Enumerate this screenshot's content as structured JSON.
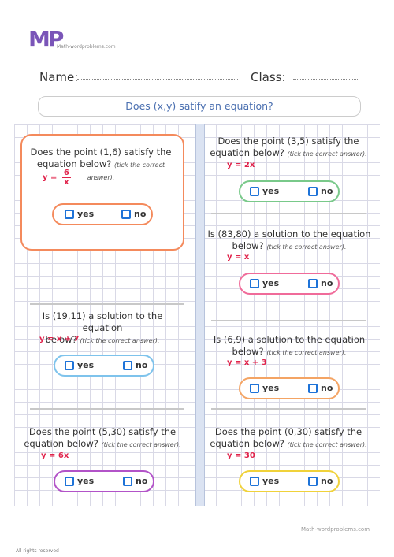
{
  "logo": {
    "letters": "MP",
    "tagline": "Math-wordproblems.com"
  },
  "header": {
    "name_label": "Name:",
    "class_label": "Class:"
  },
  "title": "Does (x,y) satify an equation?",
  "hint": "(tick the correct answer).",
  "options": {
    "yes": "yes",
    "no": "no"
  },
  "questions": [
    {
      "line1": "Does the point (1,6) satisfy the",
      "line2": "equation below?",
      "eq_prefix": "y =",
      "eq_num": "6",
      "eq_den": "x",
      "pill_color": "#f48a5c"
    },
    {
      "line1": "Does the point (3,5) satisfy the",
      "line2": "equation below?",
      "equation": "y = 2x",
      "pill_color": "#79c98a"
    },
    {
      "line1": "Is (83,80) a solution to the equation",
      "line2": "below?",
      "equation": "y = x",
      "pill_color": "#f06b9a"
    },
    {
      "line1": "Is (19,11) a solution to the equation",
      "line2": "below?",
      "equation": "y = x + 7",
      "pill_color": "#7ec3ec"
    },
    {
      "line1": "Is (6,9) a solution to the equation",
      "line2": "below?",
      "equation": "y = x + 3",
      "pill_color": "#f4a464"
    },
    {
      "line1": "Does the point (5,30) satisfy the",
      "line2": "equation below?",
      "equation": "y = 6x",
      "pill_color": "#b253c8"
    },
    {
      "line1": "Does the point (0,30) satisfy the",
      "line2": "equation below?",
      "equation": "y = 30",
      "pill_color": "#f0d23a"
    }
  ],
  "footer": {
    "rights": "All rights reserved",
    "site": "Math-wordproblems.com"
  }
}
